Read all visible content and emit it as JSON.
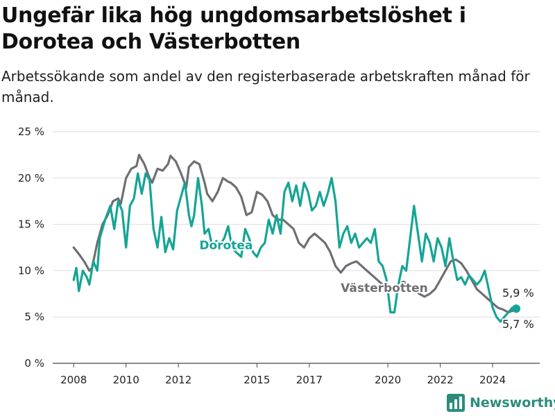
{
  "title": "Ungefär lika hög ungdomsarbetslöshet i Dorotea och Västerbotten",
  "subtitle": "Arbetssökande som andel av den registerbaserade arbetskraften månad för månad.",
  "brand": {
    "name": "Newsworthy",
    "icon": "newsworthy-chart-logo-icon"
  },
  "colors": {
    "dorotea": "#15a495",
    "vasterbotten": "#6f6e73",
    "grid": "#dedede",
    "text": "#222222"
  },
  "chart_data": {
    "type": "line",
    "title": "",
    "xlabel": "",
    "ylabel": "",
    "ylim": [
      0,
      25
    ],
    "xlim": [
      2007.2,
      2025.8
    ],
    "y_ticks": [
      0,
      5,
      10,
      15,
      20,
      25
    ],
    "y_tick_labels": [
      "0 %",
      "5 %",
      "10 %",
      "15 %",
      "20 %",
      "25 %"
    ],
    "x_ticks": [
      2008,
      2010,
      2012,
      2015,
      2017,
      2020,
      2022,
      2024
    ],
    "x_tick_labels": [
      "2008",
      "2010",
      "2012",
      "2015",
      "2017",
      "2020",
      "2022",
      "2024"
    ],
    "grid": true,
    "legend": "none (series labeled directly on the lines)",
    "series": [
      {
        "name": "Västerbotten",
        "color": "#6f6e73",
        "label_at": [
          2018.2,
          7.7
        ],
        "end_label": "5,7 %",
        "points": [
          [
            2008.0,
            12.5
          ],
          [
            2008.2,
            11.8
          ],
          [
            2008.4,
            11.0
          ],
          [
            2008.6,
            10.0
          ],
          [
            2008.7,
            10.3
          ],
          [
            2008.9,
            13.0
          ],
          [
            2009.1,
            15.0
          ],
          [
            2009.3,
            16.0
          ],
          [
            2009.5,
            17.5
          ],
          [
            2009.7,
            17.8
          ],
          [
            2009.8,
            17.2
          ],
          [
            2010.0,
            20.0
          ],
          [
            2010.2,
            21.0
          ],
          [
            2010.4,
            21.3
          ],
          [
            2010.5,
            22.5
          ],
          [
            2010.7,
            21.5
          ],
          [
            2010.9,
            20.0
          ],
          [
            2011.0,
            19.5
          ],
          [
            2011.2,
            21.0
          ],
          [
            2011.4,
            20.8
          ],
          [
            2011.6,
            21.5
          ],
          [
            2011.7,
            22.4
          ],
          [
            2011.9,
            21.8
          ],
          [
            2012.1,
            20.5
          ],
          [
            2012.3,
            19.0
          ],
          [
            2012.4,
            21.2
          ],
          [
            2012.6,
            21.8
          ],
          [
            2012.8,
            21.5
          ],
          [
            2013.0,
            19.5
          ],
          [
            2013.1,
            18.3
          ],
          [
            2013.3,
            17.5
          ],
          [
            2013.5,
            18.5
          ],
          [
            2013.7,
            20.0
          ],
          [
            2013.9,
            19.6
          ],
          [
            2014.0,
            19.5
          ],
          [
            2014.2,
            19.0
          ],
          [
            2014.4,
            18.0
          ],
          [
            2014.6,
            16.0
          ],
          [
            2014.8,
            16.3
          ],
          [
            2015.0,
            18.5
          ],
          [
            2015.2,
            18.2
          ],
          [
            2015.4,
            17.5
          ],
          [
            2015.6,
            16.0
          ],
          [
            2015.8,
            15.5
          ],
          [
            2016.0,
            15.5
          ],
          [
            2016.2,
            15.0
          ],
          [
            2016.4,
            14.5
          ],
          [
            2016.6,
            13.0
          ],
          [
            2016.8,
            12.5
          ],
          [
            2017.0,
            13.5
          ],
          [
            2017.2,
            14.0
          ],
          [
            2017.4,
            13.5
          ],
          [
            2017.6,
            13.0
          ],
          [
            2017.8,
            12.0
          ],
          [
            2018.0,
            10.5
          ],
          [
            2018.2,
            9.8
          ],
          [
            2018.4,
            10.5
          ],
          [
            2018.6,
            10.8
          ],
          [
            2018.8,
            11.0
          ],
          [
            2019.0,
            10.5
          ],
          [
            2019.2,
            10.0
          ],
          [
            2019.4,
            9.5
          ],
          [
            2019.6,
            9.0
          ],
          [
            2019.8,
            8.5
          ],
          [
            2020.0,
            8.2
          ],
          [
            2020.2,
            8.0
          ],
          [
            2020.4,
            8.5
          ],
          [
            2020.6,
            8.8
          ],
          [
            2020.8,
            8.5
          ],
          [
            2021.0,
            8.0
          ],
          [
            2021.2,
            7.5
          ],
          [
            2021.4,
            7.2
          ],
          [
            2021.6,
            7.5
          ],
          [
            2021.8,
            8.0
          ],
          [
            2022.0,
            9.0
          ],
          [
            2022.2,
            10.0
          ],
          [
            2022.4,
            11.0
          ],
          [
            2022.6,
            11.2
          ],
          [
            2022.8,
            10.8
          ],
          [
            2023.0,
            10.0
          ],
          [
            2023.2,
            9.0
          ],
          [
            2023.4,
            8.0
          ],
          [
            2023.6,
            7.5
          ],
          [
            2023.8,
            7.0
          ],
          [
            2024.0,
            6.5
          ],
          [
            2024.2,
            6.0
          ],
          [
            2024.4,
            5.8
          ],
          [
            2024.6,
            5.5
          ],
          [
            2024.8,
            5.7
          ],
          [
            2025.0,
            5.7
          ]
        ]
      },
      {
        "name": "Dorotea",
        "color": "#15a495",
        "label_at": [
          2012.8,
          12.3
        ],
        "end_label": "5,9 %",
        "points": [
          [
            2008.0,
            9.0
          ],
          [
            2008.1,
            10.3
          ],
          [
            2008.2,
            7.8
          ],
          [
            2008.35,
            10.0
          ],
          [
            2008.5,
            9.3
          ],
          [
            2008.6,
            8.5
          ],
          [
            2008.75,
            11.0
          ],
          [
            2008.9,
            10.0
          ],
          [
            2009.0,
            13.5
          ],
          [
            2009.2,
            15.5
          ],
          [
            2009.4,
            17.0
          ],
          [
            2009.55,
            14.5
          ],
          [
            2009.7,
            17.5
          ],
          [
            2009.85,
            16.5
          ],
          [
            2010.0,
            12.5
          ],
          [
            2010.15,
            17.0
          ],
          [
            2010.3,
            17.8
          ],
          [
            2010.45,
            20.5
          ],
          [
            2010.6,
            18.3
          ],
          [
            2010.75,
            20.5
          ],
          [
            2010.9,
            19.8
          ],
          [
            2011.05,
            14.5
          ],
          [
            2011.2,
            12.5
          ],
          [
            2011.35,
            15.8
          ],
          [
            2011.5,
            12.0
          ],
          [
            2011.65,
            13.5
          ],
          [
            2011.8,
            12.3
          ],
          [
            2011.95,
            16.5
          ],
          [
            2012.1,
            18.0
          ],
          [
            2012.25,
            19.5
          ],
          [
            2012.4,
            16.0
          ],
          [
            2012.5,
            14.8
          ],
          [
            2012.6,
            16.0
          ],
          [
            2012.75,
            20.0
          ],
          [
            2012.9,
            17.0
          ],
          [
            2013.0,
            14.0
          ],
          [
            2013.15,
            14.5
          ],
          [
            2013.3,
            12.5
          ],
          [
            2013.45,
            13.2
          ],
          [
            2013.6,
            12.8
          ],
          [
            2013.75,
            13.5
          ],
          [
            2013.9,
            14.8
          ],
          [
            2014.05,
            12.5
          ],
          [
            2014.2,
            12.0
          ],
          [
            2014.4,
            11.5
          ],
          [
            2014.55,
            14.5
          ],
          [
            2014.7,
            13.5
          ],
          [
            2014.85,
            12.0
          ],
          [
            2015.0,
            11.5
          ],
          [
            2015.15,
            12.5
          ],
          [
            2015.3,
            13.0
          ],
          [
            2015.45,
            15.5
          ],
          [
            2015.6,
            14.0
          ],
          [
            2015.75,
            16.0
          ],
          [
            2015.9,
            14.0
          ],
          [
            2016.05,
            18.5
          ],
          [
            2016.2,
            19.5
          ],
          [
            2016.35,
            17.5
          ],
          [
            2016.5,
            19.2
          ],
          [
            2016.65,
            17.0
          ],
          [
            2016.8,
            19.5
          ],
          [
            2016.95,
            18.5
          ],
          [
            2017.1,
            16.5
          ],
          [
            2017.25,
            17.0
          ],
          [
            2017.4,
            18.5
          ],
          [
            2017.55,
            17.0
          ],
          [
            2017.7,
            18.3
          ],
          [
            2017.85,
            20.0
          ],
          [
            2018.0,
            17.5
          ],
          [
            2018.15,
            12.5
          ],
          [
            2018.3,
            14.0
          ],
          [
            2018.45,
            14.8
          ],
          [
            2018.6,
            13.0
          ],
          [
            2018.75,
            14.0
          ],
          [
            2018.9,
            12.5
          ],
          [
            2019.05,
            13.0
          ],
          [
            2019.2,
            13.5
          ],
          [
            2019.35,
            13.0
          ],
          [
            2019.5,
            14.5
          ],
          [
            2019.65,
            11.0
          ],
          [
            2019.8,
            10.5
          ],
          [
            2019.95,
            9.0
          ],
          [
            2020.1,
            5.5
          ],
          [
            2020.25,
            5.5
          ],
          [
            2020.4,
            8.5
          ],
          [
            2020.55,
            10.5
          ],
          [
            2020.7,
            10.0
          ],
          [
            2020.85,
            13.5
          ],
          [
            2021.0,
            17.0
          ],
          [
            2021.15,
            14.0
          ],
          [
            2021.3,
            11.0
          ],
          [
            2021.45,
            14.0
          ],
          [
            2021.6,
            13.0
          ],
          [
            2021.75,
            11.0
          ],
          [
            2021.9,
            13.5
          ],
          [
            2022.05,
            12.5
          ],
          [
            2022.2,
            10.5
          ],
          [
            2022.35,
            13.5
          ],
          [
            2022.5,
            11.0
          ],
          [
            2022.65,
            9.0
          ],
          [
            2022.8,
            9.3
          ],
          [
            2022.95,
            8.5
          ],
          [
            2023.1,
            9.5
          ],
          [
            2023.25,
            9.0
          ],
          [
            2023.4,
            8.5
          ],
          [
            2023.55,
            9.0
          ],
          [
            2023.7,
            10.0
          ],
          [
            2023.85,
            8.0
          ],
          [
            2024.0,
            6.0
          ],
          [
            2024.15,
            5.0
          ],
          [
            2024.3,
            4.5
          ],
          [
            2024.45,
            5.0
          ],
          [
            2024.6,
            5.5
          ],
          [
            2024.75,
            6.0
          ],
          [
            2024.9,
            5.9
          ]
        ]
      }
    ]
  }
}
